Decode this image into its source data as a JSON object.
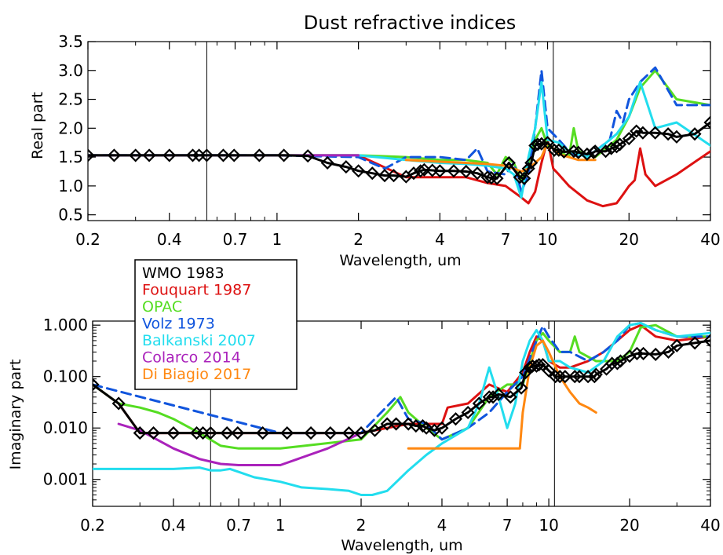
{
  "chart_data": [
    {
      "type": "line",
      "title": "Dust  refractive indices",
      "xlabel": "Wavelength, um",
      "ylabel": "Real part",
      "x_scale": "log",
      "y_scale": "linear",
      "xlim": [
        0.2,
        40
      ],
      "ylim": [
        0.4,
        3.5
      ],
      "x_ticks": [
        "0.2",
        "0.4",
        "0.7",
        "1",
        "2",
        "4",
        "7",
        "10",
        "20",
        "40"
      ],
      "y_ticks": [
        "0.5",
        "1.0",
        "1.5",
        "2.0",
        "2.5",
        "3.0",
        "3.5"
      ],
      "vertical_lines_x": [
        0.55,
        10.5
      ],
      "grid": false,
      "series": [
        {
          "name": "Fouquart 1987",
          "color": "#dd1111",
          "style": "solid",
          "x": [
            0.2,
            0.5,
            1,
            2,
            3,
            5,
            6,
            7,
            8,
            8.5,
            9,
            9.5,
            10,
            10.5,
            11,
            12,
            14,
            16,
            18,
            19,
            20,
            21,
            22,
            23,
            25,
            30,
            40
          ],
          "y": [
            1.53,
            1.53,
            1.53,
            1.53,
            1.15,
            1.15,
            1.05,
            1.0,
            0.8,
            0.7,
            0.9,
            1.4,
            1.8,
            1.3,
            1.2,
            1.0,
            0.75,
            0.65,
            0.7,
            0.85,
            1.0,
            1.1,
            1.65,
            1.2,
            1.0,
            1.2,
            1.6
          ]
        },
        {
          "name": "OPAC",
          "color": "#55dd22",
          "style": "solid",
          "x": [
            0.2,
            1,
            2,
            3,
            4,
            5,
            6,
            6.5,
            7,
            7.5,
            8,
            8.5,
            9,
            9.5,
            10,
            11,
            12,
            12.5,
            13,
            15,
            18,
            20,
            22,
            25,
            30,
            40
          ],
          "y": [
            1.53,
            1.53,
            1.53,
            1.5,
            1.45,
            1.45,
            1.4,
            1.2,
            1.5,
            1.4,
            1.1,
            1.4,
            1.8,
            2.0,
            1.7,
            1.6,
            1.5,
            2.0,
            1.6,
            1.5,
            1.8,
            2.2,
            2.7,
            3.0,
            2.5,
            2.4
          ]
        },
        {
          "name": "Volz 1973",
          "color": "#1155dd",
          "style": "dashed",
          "x": [
            0.2,
            1,
            2,
            2.5,
            3,
            4,
            5,
            5.5,
            6,
            7,
            7.5,
            8,
            8.5,
            9,
            9.5,
            10,
            11,
            12,
            13,
            15,
            17,
            18,
            19,
            20,
            22,
            25,
            30,
            40
          ],
          "y": [
            1.53,
            1.53,
            1.5,
            1.3,
            1.5,
            1.5,
            1.45,
            1.65,
            1.25,
            1.2,
            1.4,
            0.9,
            1.2,
            2.0,
            3.0,
            2.0,
            1.8,
            1.6,
            1.5,
            1.6,
            1.8,
            2.3,
            2.1,
            2.5,
            2.8,
            3.05,
            2.4,
            2.4
          ]
        },
        {
          "name": "Balkanski 2007",
          "color": "#22ddee",
          "style": "solid",
          "x": [
            0.2,
            1,
            2,
            3,
            4,
            5,
            6,
            7,
            7.5,
            8,
            8.5,
            9,
            9.5,
            10,
            11,
            12,
            14,
            16,
            18,
            20,
            22,
            25,
            30,
            40
          ],
          "y": [
            1.53,
            1.53,
            1.53,
            1.45,
            1.4,
            1.38,
            1.35,
            1.3,
            1.2,
            0.8,
            1.5,
            2.0,
            2.8,
            1.8,
            1.75,
            1.6,
            1.5,
            1.7,
            1.9,
            2.2,
            2.8,
            2.0,
            2.1,
            1.7
          ]
        },
        {
          "name": "Colarco 2014",
          "color": "#aa22bb",
          "style": "solid",
          "x": [
            0.2,
            0.5,
            1,
            2
          ],
          "y": [
            1.53,
            1.53,
            1.53,
            1.53
          ]
        },
        {
          "name": "Di Biagio 2017",
          "color": "#ff8811",
          "style": "solid",
          "x": [
            3,
            4,
            5,
            6,
            7,
            7.5,
            8,
            8.5,
            9,
            9.5,
            10,
            11,
            12,
            13,
            14,
            15
          ],
          "y": [
            1.45,
            1.42,
            1.4,
            1.38,
            1.35,
            1.3,
            1.25,
            1.3,
            1.4,
            1.5,
            1.75,
            1.55,
            1.5,
            1.45,
            1.45,
            1.45
          ]
        },
        {
          "name": "WMO 1983",
          "color": "#000000",
          "style": "solid-diamonds",
          "x": [
            0.2,
            0.25,
            0.3,
            0.337,
            0.4,
            0.488,
            0.515,
            0.55,
            0.633,
            0.694,
            0.86,
            1.06,
            1.3,
            1.536,
            1.8,
            2.0,
            2.25,
            2.5,
            2.7,
            3.0,
            3.2,
            3.392,
            3.5,
            3.75,
            4.0,
            4.5,
            5.0,
            5.5,
            6.0,
            6.2,
            6.5,
            7.2,
            7.9,
            8.2,
            8.5,
            8.7,
            9.0,
            9.2,
            9.5,
            10.0,
            10.591,
            11.0,
            11.5,
            12.5,
            13.0,
            14.0,
            14.8,
            15.0,
            16.4,
            17.2,
            18.0,
            18.5,
            20.0,
            21.3,
            22.5,
            25.0,
            27.9,
            30.0,
            35.0,
            40.0
          ],
          "y": [
            1.53,
            1.53,
            1.53,
            1.53,
            1.53,
            1.53,
            1.53,
            1.53,
            1.53,
            1.53,
            1.53,
            1.53,
            1.52,
            1.4,
            1.33,
            1.26,
            1.22,
            1.18,
            1.18,
            1.16,
            1.22,
            1.26,
            1.28,
            1.27,
            1.26,
            1.26,
            1.25,
            1.22,
            1.15,
            1.14,
            1.13,
            1.4,
            1.15,
            1.13,
            1.3,
            1.4,
            1.7,
            1.72,
            1.73,
            1.75,
            1.62,
            1.62,
            1.59,
            1.6,
            1.58,
            1.55,
            1.58,
            1.6,
            1.6,
            1.65,
            1.68,
            1.72,
            1.82,
            1.95,
            1.92,
            1.92,
            1.9,
            1.85,
            1.9,
            2.1
          ]
        }
      ]
    },
    {
      "type": "line",
      "xlabel": "Wavelength, um",
      "ylabel": "Imaginary part",
      "x_scale": "log",
      "y_scale": "log",
      "xlim": [
        0.2,
        40
      ],
      "ylim": [
        0.0003,
        1.2
      ],
      "x_ticks": [
        "0.2",
        "0.4",
        "0.7",
        "1",
        "2",
        "4",
        "7",
        "10",
        "20",
        "40"
      ],
      "y_ticks": [
        "0.001",
        "0.010",
        "0.100",
        "1.000"
      ],
      "vertical_lines_x": [
        0.55,
        10.5
      ],
      "grid": false,
      "series": [
        {
          "name": "Fouquart 1987",
          "color": "#dd1111",
          "style": "solid",
          "x": [
            0.2,
            0.25,
            0.3,
            0.5,
            1,
            2,
            3,
            4,
            4.2,
            5,
            6,
            7,
            8,
            8.5,
            9,
            9.5,
            10,
            11,
            12,
            14,
            16,
            18,
            20,
            22,
            25,
            30,
            40
          ],
          "y": [
            0.07,
            0.03,
            0.008,
            0.008,
            0.008,
            0.008,
            0.012,
            0.012,
            0.025,
            0.03,
            0.07,
            0.05,
            0.12,
            0.3,
            0.6,
            0.5,
            0.2,
            0.15,
            0.15,
            0.2,
            0.3,
            0.5,
            0.8,
            1.0,
            0.6,
            0.5,
            0.6
          ]
        },
        {
          "name": "OPAC",
          "color": "#55dd22",
          "style": "solid",
          "x": [
            0.2,
            0.25,
            0.3,
            0.35,
            0.4,
            0.5,
            0.6,
            0.7,
            1,
            2,
            2.5,
            2.8,
            3,
            3.5,
            4,
            5,
            6,
            7,
            8,
            9,
            9.5,
            10,
            11,
            12,
            12.5,
            13,
            15,
            18,
            20,
            22,
            25,
            30,
            40
          ],
          "y": [
            0.07,
            0.03,
            0.025,
            0.02,
            0.015,
            0.008,
            0.0045,
            0.004,
            0.004,
            0.006,
            0.02,
            0.04,
            0.02,
            0.01,
            0.006,
            0.01,
            0.04,
            0.07,
            0.07,
            0.5,
            0.7,
            0.5,
            0.3,
            0.3,
            0.6,
            0.3,
            0.2,
            0.2,
            0.3,
            0.9,
            1.0,
            0.6,
            0.6
          ]
        },
        {
          "name": "Volz 1973",
          "color": "#1155dd",
          "style": "dashed",
          "x": [
            0.2,
            1,
            2,
            2.7,
            3,
            3.5,
            4,
            5,
            6,
            7,
            8,
            9,
            9.5,
            10,
            11,
            12,
            14,
            16,
            18,
            20,
            22,
            25,
            30,
            40
          ],
          "y": [
            0.07,
            0.008,
            0.008,
            0.04,
            0.015,
            0.012,
            0.006,
            0.01,
            0.02,
            0.05,
            0.1,
            0.5,
            0.95,
            0.6,
            0.3,
            0.3,
            0.2,
            0.3,
            0.5,
            1.0,
            1.1,
            0.8,
            0.6,
            0.6
          ]
        },
        {
          "name": "Balkanski 2007",
          "color": "#22ddee",
          "style": "solid",
          "x": [
            0.2,
            0.3,
            0.4,
            0.5,
            0.55,
            0.6,
            0.65,
            0.7,
            0.8,
            1.0,
            1.2,
            1.5,
            1.8,
            2.0,
            2.2,
            2.5,
            3,
            3.5,
            4,
            5,
            5.5,
            6,
            6.5,
            7,
            7.5,
            8,
            8.5,
            9,
            9.5,
            10,
            11,
            12,
            14,
            16,
            18,
            20,
            22,
            25,
            30,
            40
          ],
          "y": [
            0.0016,
            0.0016,
            0.0016,
            0.0017,
            0.0015,
            0.0015,
            0.0016,
            0.0014,
            0.0011,
            0.0009,
            0.0007,
            0.00065,
            0.0006,
            0.0005,
            0.0005,
            0.0006,
            0.0015,
            0.003,
            0.005,
            0.01,
            0.03,
            0.15,
            0.04,
            0.01,
            0.03,
            0.2,
            0.5,
            0.8,
            0.5,
            0.2,
            0.2,
            0.15,
            0.12,
            0.2,
            0.6,
            1.0,
            1.1,
            0.8,
            0.6,
            0.7
          ]
        },
        {
          "name": "Colarco 2014",
          "color": "#aa22bb",
          "style": "solid",
          "x": [
            0.25,
            0.3,
            0.4,
            0.5,
            0.6,
            0.7,
            1,
            1.5,
            2
          ],
          "y": [
            0.012,
            0.009,
            0.004,
            0.0025,
            0.002,
            0.0019,
            0.0019,
            0.004,
            0.008
          ]
        },
        {
          "name": "Di Biagio 2017",
          "color": "#ff8811",
          "style": "solid",
          "x": [
            3,
            4,
            5,
            6,
            7,
            7.5,
            7.8,
            8,
            8.5,
            9,
            9.5,
            10,
            11,
            12,
            13,
            14,
            15
          ],
          "y": [
            0.004,
            0.004,
            0.004,
            0.004,
            0.004,
            0.004,
            0.004,
            0.02,
            0.15,
            0.4,
            0.5,
            0.3,
            0.1,
            0.05,
            0.03,
            0.025,
            0.02
          ]
        },
        {
          "name": "WMO 1983",
          "color": "#000000",
          "style": "solid-diamonds",
          "x": [
            0.2,
            0.25,
            0.3,
            0.337,
            0.4,
            0.488,
            0.515,
            0.55,
            0.633,
            0.694,
            0.86,
            1.06,
            1.3,
            1.536,
            1.8,
            2.0,
            2.25,
            2.5,
            2.7,
            3.0,
            3.2,
            3.392,
            3.5,
            3.75,
            4.0,
            4.5,
            5.0,
            5.5,
            6.0,
            6.2,
            6.5,
            7.2,
            7.9,
            8.2,
            8.5,
            8.7,
            9.0,
            9.2,
            9.5,
            10.0,
            10.591,
            11.0,
            11.5,
            12.5,
            13.0,
            14.0,
            14.8,
            15.0,
            16.4,
            17.2,
            18.0,
            18.5,
            20.0,
            21.3,
            22.5,
            25.0,
            27.9,
            30.0,
            35.0,
            40.0
          ],
          "y": [
            0.07,
            0.03,
            0.008,
            0.008,
            0.008,
            0.008,
            0.008,
            0.008,
            0.008,
            0.008,
            0.008,
            0.008,
            0.008,
            0.008,
            0.008,
            0.008,
            0.009,
            0.012,
            0.012,
            0.012,
            0.011,
            0.011,
            0.01,
            0.009,
            0.01,
            0.015,
            0.02,
            0.03,
            0.04,
            0.04,
            0.045,
            0.04,
            0.06,
            0.12,
            0.15,
            0.16,
            0.16,
            0.17,
            0.17,
            0.13,
            0.1,
            0.1,
            0.1,
            0.1,
            0.1,
            0.1,
            0.1,
            0.11,
            0.14,
            0.18,
            0.18,
            0.2,
            0.25,
            0.28,
            0.28,
            0.27,
            0.3,
            0.4,
            0.45,
            0.5
          ]
        }
      ]
    }
  ]
}
